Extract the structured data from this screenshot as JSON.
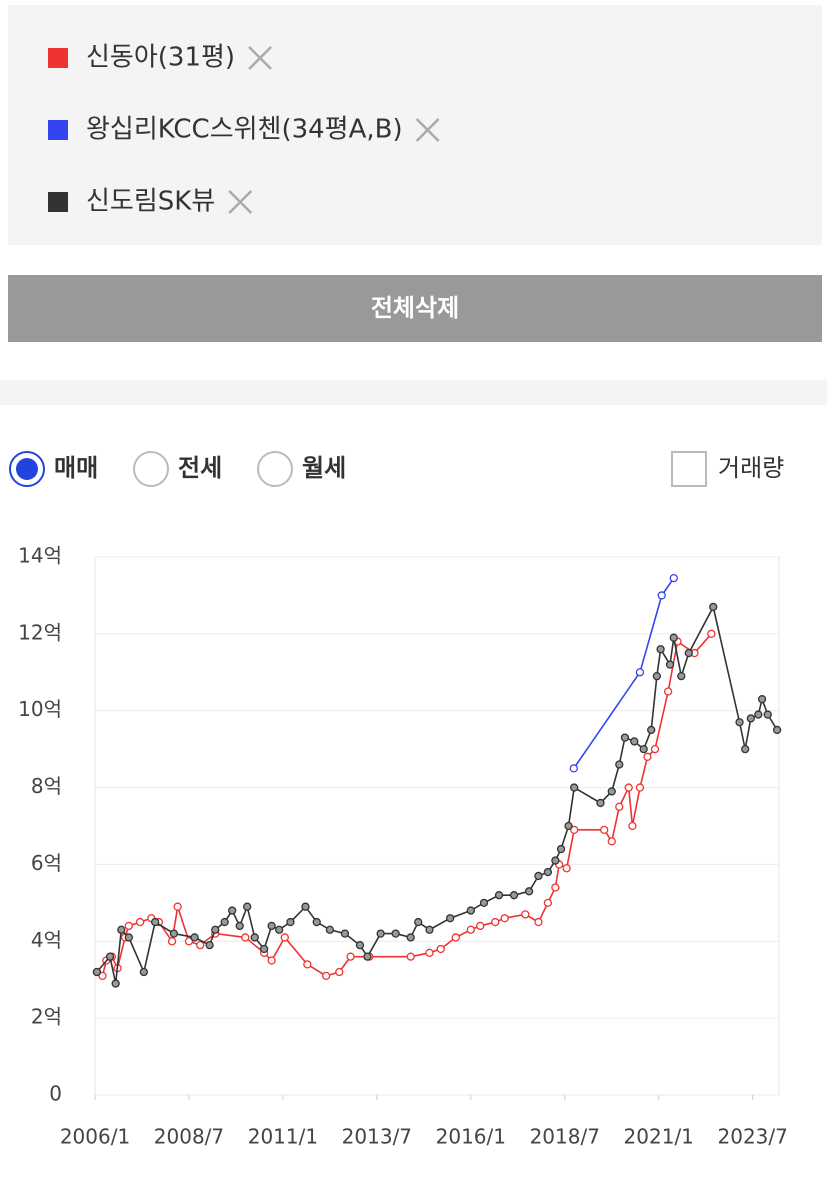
{
  "delete_all_button": "전체삭제",
  "deal_types": {
    "options": [
      "매매",
      "전세",
      "월세"
    ],
    "selected": 0
  },
  "volume_checkbox": {
    "label": "거래량",
    "checked": false
  },
  "chart_data": {
    "type": "line",
    "xlim": [
      2006,
      2024.2
    ],
    "xticks": [
      {
        "value": 2006.0,
        "label": "2006/1"
      },
      {
        "value": 2008.5,
        "label": "2008/7"
      },
      {
        "value": 2011.0,
        "label": "2011/1"
      },
      {
        "value": 2013.5,
        "label": "2013/7"
      },
      {
        "value": 2016.0,
        "label": "2016/1"
      },
      {
        "value": 2018.5,
        "label": "2018/7"
      },
      {
        "value": 2021.0,
        "label": "2021/1"
      },
      {
        "value": 2023.5,
        "label": "2023/7"
      }
    ],
    "ylim": [
      0,
      14
    ],
    "yticks": [
      0,
      {
        "value": 2,
        "label": "2억"
      },
      {
        "value": 4,
        "label": "4억"
      },
      {
        "value": 6,
        "label": "6억"
      },
      {
        "value": 8,
        "label": "8억"
      },
      {
        "value": 10,
        "label": "10억"
      },
      {
        "value": 12,
        "label": "12억"
      },
      {
        "value": 14,
        "label": "14억"
      }
    ],
    "grid": true,
    "series": [
      {
        "name": "신동아(31평)",
        "color": "#ee3333",
        "marker_fill": "#ffffff",
        "x": [
          2006.05,
          2006.2,
          2006.3,
          2006.45,
          2006.6,
          2006.8,
          2006.9,
          2007.2,
          2007.5,
          2007.7,
          2008.05,
          2008.2,
          2008.5,
          2008.8,
          2009.2,
          2010.0,
          2010.5,
          2010.7,
          2011.05,
          2011.65,
          2012.15,
          2012.5,
          2012.8,
          2013.3,
          2014.4,
          2014.9,
          2015.2,
          2015.6,
          2016.0,
          2016.25,
          2016.65,
          2016.9,
          2017.45,
          2017.8,
          2018.05,
          2018.25,
          2018.35,
          2018.55,
          2018.75,
          2019.55,
          2019.75,
          2019.95,
          2020.2,
          2020.3,
          2020.5,
          2020.7,
          2020.9,
          2021.25,
          2021.5,
          2021.95,
          2022.4
        ],
        "values": [
          3.2,
          3.1,
          3.5,
          3.6,
          3.3,
          4.1,
          4.4,
          4.5,
          4.6,
          4.5,
          4.0,
          4.9,
          4.0,
          3.9,
          4.2,
          4.1,
          3.7,
          3.5,
          4.1,
          3.4,
          3.1,
          3.2,
          3.6,
          3.6,
          3.6,
          3.7,
          3.8,
          4.1,
          4.3,
          4.4,
          4.5,
          4.6,
          4.7,
          4.5,
          5.0,
          5.4,
          6.0,
          5.9,
          6.9,
          6.9,
          6.6,
          7.5,
          8.0,
          7.0,
          8.0,
          8.8,
          9.0,
          10.5,
          11.8,
          11.5,
          12.0
        ]
      },
      {
        "name": "왕십리KCC스위첸(34평A,B)",
        "color": "#3344ee",
        "marker_fill": "#ffffff",
        "x": [
          2018.74,
          2020.5,
          2021.08,
          2021.4
        ],
        "values": [
          8.5,
          11.0,
          13.0,
          13.45
        ]
      },
      {
        "name": "신도림SK뷰",
        "color": "#333333",
        "marker_fill": "#999999",
        "x": [
          2006.05,
          2006.4,
          2006.55,
          2006.7,
          2006.9,
          2007.3,
          2007.6,
          2008.1,
          2008.65,
          2009.05,
          2009.2,
          2009.45,
          2009.65,
          2009.85,
          2010.05,
          2010.25,
          2010.5,
          2010.7,
          2010.9,
          2011.2,
          2011.6,
          2011.9,
          2012.25,
          2012.65,
          2013.05,
          2013.25,
          2013.6,
          2014.0,
          2014.4,
          2014.6,
          2014.9,
          2015.45,
          2016.0,
          2016.35,
          2016.75,
          2017.15,
          2017.55,
          2017.8,
          2018.05,
          2018.25,
          2018.4,
          2018.6,
          2018.75,
          2019.45,
          2019.75,
          2019.95,
          2020.1,
          2020.35,
          2020.6,
          2020.8,
          2020.95,
          2021.05,
          2021.3,
          2021.4,
          2021.6,
          2021.8,
          2022.45,
          2023.15,
          2023.3,
          2023.45,
          2023.65,
          2023.75,
          2023.9,
          2024.15
        ],
        "values": [
          3.2,
          3.6,
          2.9,
          4.3,
          4.1,
          3.2,
          4.5,
          4.2,
          4.1,
          3.9,
          4.3,
          4.5,
          4.8,
          4.4,
          4.9,
          4.1,
          3.8,
          4.4,
          4.3,
          4.5,
          4.9,
          4.5,
          4.3,
          4.2,
          3.9,
          3.6,
          4.2,
          4.2,
          4.1,
          4.5,
          4.3,
          4.6,
          4.8,
          5.0,
          5.2,
          5.2,
          5.3,
          5.7,
          5.8,
          6.1,
          6.4,
          7.0,
          8.0,
          7.6,
          7.9,
          8.6,
          9.3,
          9.2,
          9.0,
          9.5,
          10.9,
          11.6,
          11.2,
          11.9,
          10.9,
          11.5,
          12.7,
          9.7,
          9.0,
          9.8,
          9.9,
          10.3,
          9.9,
          9.5
        ]
      }
    ]
  }
}
